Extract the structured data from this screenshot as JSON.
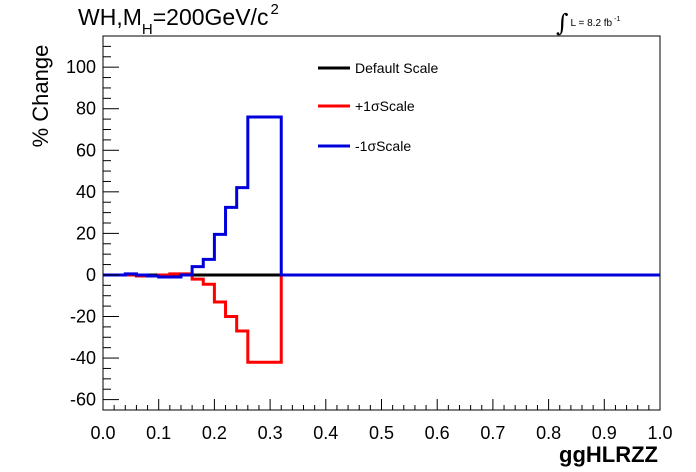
{
  "header": {
    "title_main": "WH,M",
    "title_sub": "H",
    "title_rest": "=200GeV/c",
    "title_sup": "2",
    "lumi_integral": "∫",
    "lumi_text": "L = 8.2 fb",
    "lumi_sup": "-1"
  },
  "chart_data": {
    "type": "line",
    "title": "",
    "xlabel": "ggHLRZZ",
    "ylabel": "% Change",
    "xlim": [
      0,
      1
    ],
    "ylim": [
      -65,
      115
    ],
    "x_ticks": [
      0.0,
      0.1,
      0.2,
      0.3,
      0.4,
      0.5,
      0.6,
      0.7,
      0.8,
      0.9,
      1.0
    ],
    "x_tick_labels": [
      "0.0",
      "0.1",
      "0.2",
      "0.3",
      "0.4",
      "0.5",
      "0.6",
      "0.7",
      "0.8",
      "0.9",
      "1.0"
    ],
    "y_ticks": [
      -60,
      -40,
      -20,
      0,
      20,
      40,
      60,
      80,
      100
    ],
    "y_tick_labels": [
      "-60",
      "-40",
      "-20",
      "0",
      "20",
      "40",
      "60",
      "80",
      "100"
    ],
    "legend_position": "top-right",
    "grid": false,
    "bin_edges": [
      0.0,
      0.02,
      0.04,
      0.06,
      0.08,
      0.1,
      0.12,
      0.14,
      0.16,
      0.18,
      0.2,
      0.22,
      0.24,
      0.26,
      0.28,
      0.3,
      0.32,
      0.34,
      0.36,
      0.38,
      0.4,
      0.42,
      0.44,
      0.46,
      0.48,
      0.5,
      0.52,
      0.54,
      0.56,
      0.58,
      0.6,
      0.62,
      0.64,
      0.66,
      0.68,
      0.7,
      0.72,
      0.74,
      0.76,
      0.78,
      0.8,
      0.82,
      0.84,
      0.86,
      0.88,
      0.9,
      0.92,
      0.94,
      0.96,
      0.98,
      1.0
    ],
    "series": [
      {
        "name": "Default Scale",
        "color": "#000000",
        "values": [
          0,
          0,
          0,
          0,
          0,
          0,
          0,
          0,
          0,
          0,
          0,
          0,
          0,
          0,
          0,
          0,
          0,
          0,
          0,
          0,
          0,
          0,
          0,
          0,
          0,
          0,
          0,
          0,
          0,
          0,
          0,
          0,
          0,
          0,
          0,
          0,
          0,
          0,
          0,
          0,
          0,
          0,
          0,
          0,
          0,
          0,
          0,
          0,
          0,
          0
        ]
      },
      {
        "name": "+1σScale",
        "color": "#ff0000",
        "values": [
          0,
          0,
          0,
          -0.5,
          -0.5,
          0,
          0.5,
          0.5,
          -2,
          -4.5,
          -13,
          -20,
          -27,
          -42,
          -42,
          -42,
          0,
          0,
          0,
          0,
          0,
          0,
          0,
          0,
          0,
          0,
          0,
          0,
          0,
          0,
          0,
          0,
          0,
          0,
          0,
          0,
          0,
          0,
          0,
          0,
          0,
          0,
          0,
          0,
          0,
          0,
          0,
          0,
          0,
          0
        ]
      },
      {
        "name": "-1σScale",
        "color": "#0000dd",
        "values": [
          0,
          0,
          0.5,
          0,
          -0.5,
          -1,
          -1,
          0,
          4,
          7.5,
          19.5,
          32.5,
          42,
          76,
          76,
          76,
          0,
          0,
          0,
          0,
          0,
          0,
          0,
          0,
          0,
          0,
          0,
          0,
          0,
          0,
          0,
          0,
          0,
          0,
          0,
          0,
          0,
          0,
          0,
          0,
          0,
          0,
          0,
          0,
          0,
          0,
          0,
          0,
          0,
          0
        ]
      }
    ]
  }
}
